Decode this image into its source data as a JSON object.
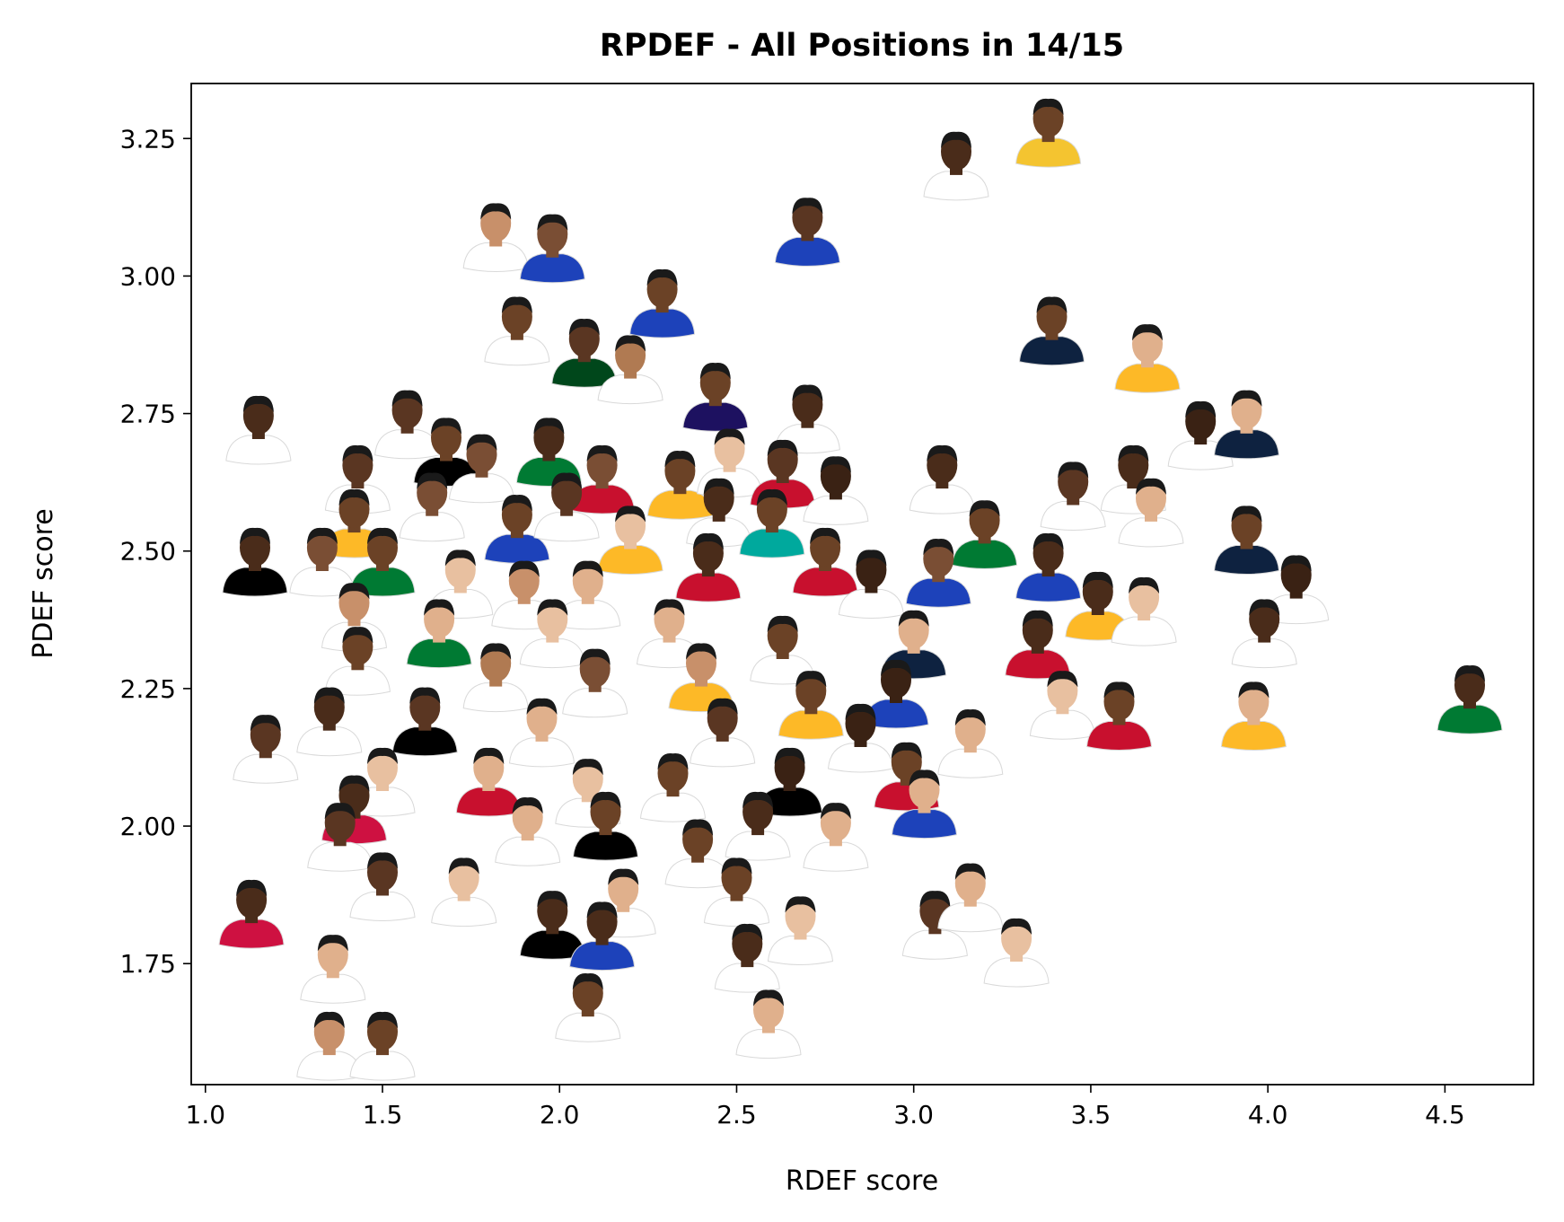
{
  "chart_data": {
    "type": "scatter",
    "title": "RPDEF - All Positions in 14/15",
    "xlabel": "RDEF score",
    "ylabel": "PDEF score",
    "xlim": [
      0.96,
      4.75
    ],
    "ylim": [
      1.53,
      3.35
    ],
    "xticks": [
      {
        "value": 1.0,
        "label": "1.0"
      },
      {
        "value": 1.5,
        "label": "1.5"
      },
      {
        "value": 2.0,
        "label": "2.0"
      },
      {
        "value": 2.5,
        "label": "2.5"
      },
      {
        "value": 3.0,
        "label": "3.0"
      },
      {
        "value": 3.5,
        "label": "3.5"
      },
      {
        "value": 4.0,
        "label": "4.0"
      },
      {
        "value": 4.5,
        "label": "4.5"
      }
    ],
    "yticks": [
      {
        "value": 1.75,
        "label": "1.75"
      },
      {
        "value": 2.0,
        "label": "2.00"
      },
      {
        "value": 2.25,
        "label": "2.25"
      },
      {
        "value": 2.5,
        "label": "2.50"
      },
      {
        "value": 2.75,
        "label": "2.75"
      },
      {
        "value": 3.0,
        "label": "3.00"
      },
      {
        "value": 3.25,
        "label": "3.25"
      }
    ],
    "grid": false,
    "marker": "player-headshot-icon",
    "points": [
      {
        "x": 3.38,
        "y": 3.26,
        "shirt": "#f4c430",
        "skin": "#6b4226"
      },
      {
        "x": 3.12,
        "y": 3.2,
        "shirt": "#ffffff",
        "skin": "#4a2c1a"
      },
      {
        "x": 2.7,
        "y": 3.08,
        "shirt": "#1d42ba",
        "skin": "#5a3622"
      },
      {
        "x": 1.82,
        "y": 3.07,
        "shirt": "#ffffff",
        "skin": "#c8906a"
      },
      {
        "x": 1.98,
        "y": 3.05,
        "shirt": "#1d42ba",
        "skin": "#7a4e34"
      },
      {
        "x": 2.29,
        "y": 2.95,
        "shirt": "#1d42ba",
        "skin": "#6b4226"
      },
      {
        "x": 1.88,
        "y": 2.9,
        "shirt": "#ffffff",
        "skin": "#6b4226"
      },
      {
        "x": 2.07,
        "y": 2.86,
        "shirt": "#00471b",
        "skin": "#5a3622"
      },
      {
        "x": 2.2,
        "y": 2.83,
        "shirt": "#ffffff",
        "skin": "#b07a52"
      },
      {
        "x": 2.44,
        "y": 2.78,
        "shirt": "#1d1160",
        "skin": "#6b4226"
      },
      {
        "x": 3.39,
        "y": 2.9,
        "shirt": "#0e2240",
        "skin": "#6b4226"
      },
      {
        "x": 3.66,
        "y": 2.85,
        "shirt": "#fdb927",
        "skin": "#e0b08c"
      },
      {
        "x": 2.7,
        "y": 2.74,
        "shirt": "#ffffff",
        "skin": "#4a2c1a"
      },
      {
        "x": 3.81,
        "y": 2.71,
        "shirt": "#ffffff",
        "skin": "#3a2214"
      },
      {
        "x": 3.94,
        "y": 2.73,
        "shirt": "#0e2240",
        "skin": "#e0b08c"
      },
      {
        "x": 1.15,
        "y": 2.72,
        "shirt": "#ffffff",
        "skin": "#4a2c1a"
      },
      {
        "x": 1.57,
        "y": 2.73,
        "shirt": "#ffffff",
        "skin": "#5a3622"
      },
      {
        "x": 1.68,
        "y": 2.68,
        "shirt": "#000000",
        "skin": "#6b4226"
      },
      {
        "x": 1.78,
        "y": 2.65,
        "shirt": "#ffffff",
        "skin": "#7a4e34"
      },
      {
        "x": 1.97,
        "y": 2.68,
        "shirt": "#007a33",
        "skin": "#4a2c1a"
      },
      {
        "x": 2.12,
        "y": 2.63,
        "shirt": "#c8102e",
        "skin": "#7a4e34"
      },
      {
        "x": 2.34,
        "y": 2.62,
        "shirt": "#fdb927",
        "skin": "#6b4226"
      },
      {
        "x": 2.48,
        "y": 2.66,
        "shirt": "#ffffff",
        "skin": "#e8c0a0"
      },
      {
        "x": 2.63,
        "y": 2.64,
        "shirt": "#c8102e",
        "skin": "#5a3622"
      },
      {
        "x": 2.78,
        "y": 2.61,
        "shirt": "#ffffff",
        "skin": "#3a2214"
      },
      {
        "x": 3.08,
        "y": 2.63,
        "shirt": "#ffffff",
        "skin": "#4a2c1a"
      },
      {
        "x": 3.45,
        "y": 2.6,
        "shirt": "#ffffff",
        "skin": "#5a3622"
      },
      {
        "x": 3.62,
        "y": 2.63,
        "shirt": "#ffffff",
        "skin": "#4a2c1a"
      },
      {
        "x": 1.43,
        "y": 2.63,
        "shirt": "#ffffff",
        "skin": "#5a3622"
      },
      {
        "x": 1.14,
        "y": 2.48,
        "shirt": "#000000",
        "skin": "#4a2c1a"
      },
      {
        "x": 1.42,
        "y": 2.55,
        "shirt": "#fdb927",
        "skin": "#6b4226"
      },
      {
        "x": 1.64,
        "y": 2.58,
        "shirt": "#ffffff",
        "skin": "#7a4e34"
      },
      {
        "x": 1.88,
        "y": 2.54,
        "shirt": "#1d42ba",
        "skin": "#6b4226"
      },
      {
        "x": 2.02,
        "y": 2.58,
        "shirt": "#ffffff",
        "skin": "#5a3622"
      },
      {
        "x": 2.2,
        "y": 2.52,
        "shirt": "#fdb927",
        "skin": "#e8c0a0"
      },
      {
        "x": 2.45,
        "y": 2.57,
        "shirt": "#ffffff",
        "skin": "#4a2c1a"
      },
      {
        "x": 2.6,
        "y": 2.55,
        "shirt": "#00a99d",
        "skin": "#6b4226"
      },
      {
        "x": 3.2,
        "y": 2.53,
        "shirt": "#007a33",
        "skin": "#6b4226"
      },
      {
        "x": 3.67,
        "y": 2.57,
        "shirt": "#ffffff",
        "skin": "#e0b08c"
      },
      {
        "x": 3.94,
        "y": 2.52,
        "shirt": "#0e2240",
        "skin": "#6b4226"
      },
      {
        "x": 1.33,
        "y": 2.48,
        "shirt": "#ffffff",
        "skin": "#7a4e34"
      },
      {
        "x": 1.5,
        "y": 2.48,
        "shirt": "#007a33",
        "skin": "#6b4226"
      },
      {
        "x": 1.72,
        "y": 2.44,
        "shirt": "#ffffff",
        "skin": "#e8c0a0"
      },
      {
        "x": 1.9,
        "y": 2.42,
        "shirt": "#ffffff",
        "skin": "#c8906a"
      },
      {
        "x": 2.08,
        "y": 2.42,
        "shirt": "#ffffff",
        "skin": "#e0b08c"
      },
      {
        "x": 2.42,
        "y": 2.47,
        "shirt": "#c8102e",
        "skin": "#4a2c1a"
      },
      {
        "x": 2.75,
        "y": 2.48,
        "shirt": "#c8102e",
        "skin": "#6b4226"
      },
      {
        "x": 2.88,
        "y": 2.44,
        "shirt": "#ffffff",
        "skin": "#3a2214"
      },
      {
        "x": 3.07,
        "y": 2.46,
        "shirt": "#1d42ba",
        "skin": "#7a4e34"
      },
      {
        "x": 3.38,
        "y": 2.47,
        "shirt": "#1d42ba",
        "skin": "#4a2c1a"
      },
      {
        "x": 3.52,
        "y": 2.4,
        "shirt": "#fdb927",
        "skin": "#4a2c1a"
      },
      {
        "x": 3.65,
        "y": 2.39,
        "shirt": "#ffffff",
        "skin": "#e8c0a0"
      },
      {
        "x": 4.08,
        "y": 2.43,
        "shirt": "#ffffff",
        "skin": "#3a2214"
      },
      {
        "x": 1.42,
        "y": 2.38,
        "shirt": "#ffffff",
        "skin": "#c8906a"
      },
      {
        "x": 1.66,
        "y": 2.35,
        "shirt": "#007a33",
        "skin": "#e0b08c"
      },
      {
        "x": 1.98,
        "y": 2.35,
        "shirt": "#ffffff",
        "skin": "#e8c0a0"
      },
      {
        "x": 2.31,
        "y": 2.35,
        "shirt": "#ffffff",
        "skin": "#e0b08c"
      },
      {
        "x": 2.63,
        "y": 2.32,
        "shirt": "#ffffff",
        "skin": "#6b4226"
      },
      {
        "x": 3.0,
        "y": 2.33,
        "shirt": "#0e2240",
        "skin": "#e0b08c"
      },
      {
        "x": 3.35,
        "y": 2.33,
        "shirt": "#c8102e",
        "skin": "#4a2c1a"
      },
      {
        "x": 3.99,
        "y": 2.35,
        "shirt": "#ffffff",
        "skin": "#4a2c1a"
      },
      {
        "x": 1.43,
        "y": 2.3,
        "shirt": "#ffffff",
        "skin": "#6b4226"
      },
      {
        "x": 1.82,
        "y": 2.27,
        "shirt": "#ffffff",
        "skin": "#b07a52"
      },
      {
        "x": 2.1,
        "y": 2.26,
        "shirt": "#ffffff",
        "skin": "#7a4e34"
      },
      {
        "x": 2.4,
        "y": 2.27,
        "shirt": "#fdb927",
        "skin": "#c8906a"
      },
      {
        "x": 2.71,
        "y": 2.22,
        "shirt": "#fdb927",
        "skin": "#6b4226"
      },
      {
        "x": 2.95,
        "y": 2.24,
        "shirt": "#1d42ba",
        "skin": "#3a2214"
      },
      {
        "x": 3.42,
        "y": 2.22,
        "shirt": "#ffffff",
        "skin": "#e8c0a0"
      },
      {
        "x": 3.58,
        "y": 2.2,
        "shirt": "#c8102e",
        "skin": "#6b4226"
      },
      {
        "x": 3.96,
        "y": 2.2,
        "shirt": "#fdb927",
        "skin": "#e0b08c"
      },
      {
        "x": 4.57,
        "y": 2.23,
        "shirt": "#007a33",
        "skin": "#4a2c1a"
      },
      {
        "x": 1.17,
        "y": 2.14,
        "shirt": "#ffffff",
        "skin": "#5a3622"
      },
      {
        "x": 1.35,
        "y": 2.19,
        "shirt": "#ffffff",
        "skin": "#4a2c1a"
      },
      {
        "x": 1.62,
        "y": 2.19,
        "shirt": "#000000",
        "skin": "#5a3622"
      },
      {
        "x": 1.95,
        "y": 2.17,
        "shirt": "#ffffff",
        "skin": "#e0b08c"
      },
      {
        "x": 2.46,
        "y": 2.17,
        "shirt": "#ffffff",
        "skin": "#5a3622"
      },
      {
        "x": 2.85,
        "y": 2.16,
        "shirt": "#ffffff",
        "skin": "#3a2214"
      },
      {
        "x": 3.16,
        "y": 2.15,
        "shirt": "#ffffff",
        "skin": "#e0b08c"
      },
      {
        "x": 1.5,
        "y": 2.08,
        "shirt": "#ffffff",
        "skin": "#e8c0a0"
      },
      {
        "x": 1.8,
        "y": 2.08,
        "shirt": "#c8102e",
        "skin": "#e0b08c"
      },
      {
        "x": 2.08,
        "y": 2.06,
        "shirt": "#ffffff",
        "skin": "#e8c0a0"
      },
      {
        "x": 2.32,
        "y": 2.07,
        "shirt": "#ffffff",
        "skin": "#6b4226"
      },
      {
        "x": 2.65,
        "y": 2.08,
        "shirt": "#000000",
        "skin": "#3a2214"
      },
      {
        "x": 2.98,
        "y": 2.09,
        "shirt": "#c8102e",
        "skin": "#6b4226"
      },
      {
        "x": 1.42,
        "y": 2.03,
        "shirt": "#ce1141",
        "skin": "#4a2c1a"
      },
      {
        "x": 3.03,
        "y": 2.04,
        "shirt": "#1d42ba",
        "skin": "#e0b08c"
      },
      {
        "x": 1.38,
        "y": 1.98,
        "shirt": "#ffffff",
        "skin": "#5a3622"
      },
      {
        "x": 1.91,
        "y": 1.99,
        "shirt": "#ffffff",
        "skin": "#e0b08c"
      },
      {
        "x": 2.13,
        "y": 2.0,
        "shirt": "#000000",
        "skin": "#6b4226"
      },
      {
        "x": 2.56,
        "y": 2.0,
        "shirt": "#ffffff",
        "skin": "#4a2c1a"
      },
      {
        "x": 2.78,
        "y": 1.98,
        "shirt": "#ffffff",
        "skin": "#e0b08c"
      },
      {
        "x": 2.39,
        "y": 1.95,
        "shirt": "#ffffff",
        "skin": "#6b4226"
      },
      {
        "x": 1.13,
        "y": 1.84,
        "shirt": "#ce1141",
        "skin": "#4a2c1a"
      },
      {
        "x": 1.5,
        "y": 1.89,
        "shirt": "#ffffff",
        "skin": "#5a3622"
      },
      {
        "x": 1.73,
        "y": 1.88,
        "shirt": "#ffffff",
        "skin": "#e8c0a0"
      },
      {
        "x": 1.98,
        "y": 1.82,
        "shirt": "#000000",
        "skin": "#4a2c1a"
      },
      {
        "x": 2.18,
        "y": 1.86,
        "shirt": "#ffffff",
        "skin": "#e0b08c"
      },
      {
        "x": 2.5,
        "y": 1.88,
        "shirt": "#ffffff",
        "skin": "#6b4226"
      },
      {
        "x": 2.68,
        "y": 1.81,
        "shirt": "#ffffff",
        "skin": "#e8c0a0"
      },
      {
        "x": 2.12,
        "y": 1.8,
        "shirt": "#1d42ba",
        "skin": "#4a2c1a"
      },
      {
        "x": 3.06,
        "y": 1.82,
        "shirt": "#ffffff",
        "skin": "#5a3622"
      },
      {
        "x": 3.16,
        "y": 1.87,
        "shirt": "#ffffff",
        "skin": "#e0b08c"
      },
      {
        "x": 3.29,
        "y": 1.77,
        "shirt": "#ffffff",
        "skin": "#e8c0a0"
      },
      {
        "x": 1.36,
        "y": 1.74,
        "shirt": "#ffffff",
        "skin": "#e0b08c"
      },
      {
        "x": 2.53,
        "y": 1.76,
        "shirt": "#ffffff",
        "skin": "#4a2c1a"
      },
      {
        "x": 2.08,
        "y": 1.67,
        "shirt": "#ffffff",
        "skin": "#6b4226"
      },
      {
        "x": 2.59,
        "y": 1.64,
        "shirt": "#ffffff",
        "skin": "#e0b08c"
      },
      {
        "x": 1.35,
        "y": 1.6,
        "shirt": "#ffffff",
        "skin": "#c8906a"
      },
      {
        "x": 1.5,
        "y": 1.6,
        "shirt": "#ffffff",
        "skin": "#6b4226"
      }
    ]
  }
}
